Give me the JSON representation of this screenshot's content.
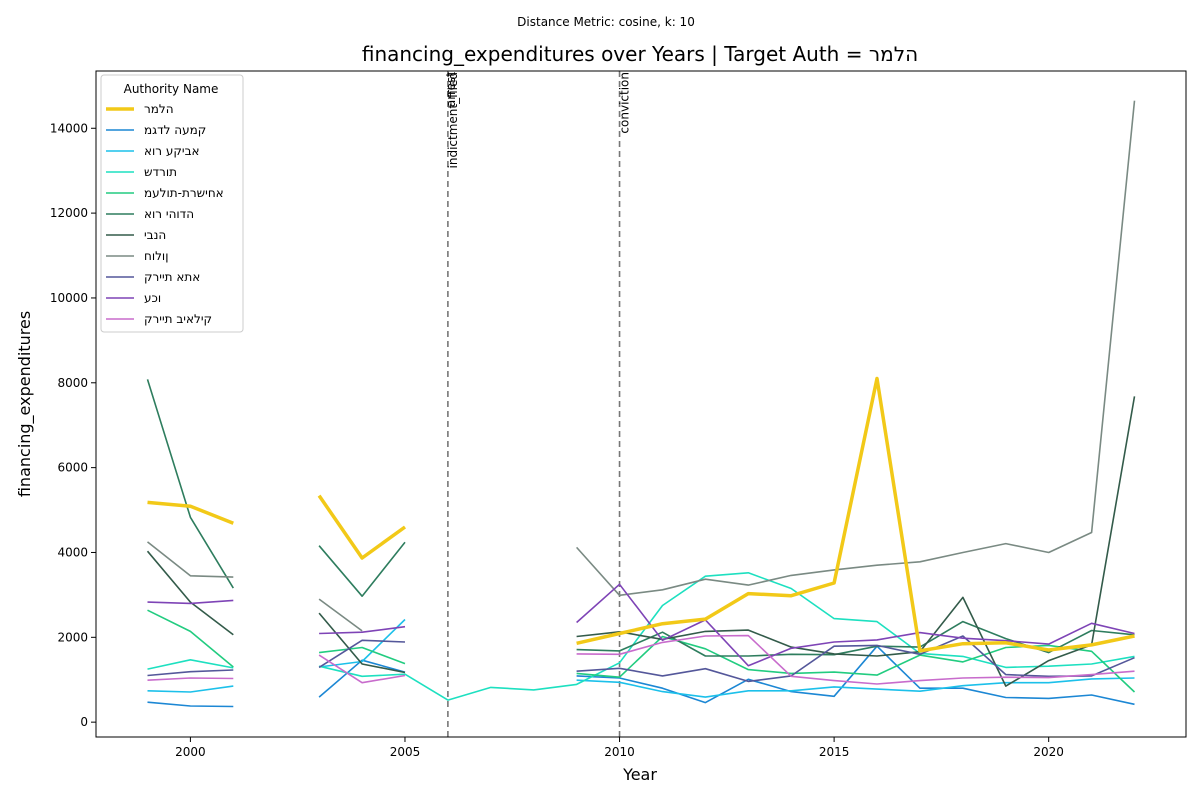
{
  "suptitle": "Distance Metric: cosine, k: 10",
  "chart_data": {
    "type": "line",
    "title": "financing_expenditures over Years | Target Auth = הלמר",
    "xlabel": "Year",
    "ylabel": "financing_expenditures",
    "xlim": [
      1997.8,
      2023.2
    ],
    "ylim": [
      -350,
      15350
    ],
    "xticks": [
      2000,
      2005,
      2010,
      2015,
      2020
    ],
    "yticks": [
      0,
      2000,
      4000,
      6000,
      8000,
      10000,
      12000,
      14000
    ],
    "grid": false,
    "legend": {
      "title": "Authority Name",
      "placement": "upper-left"
    },
    "events": [
      {
        "x": 2006,
        "labels": [
          "indictment_filed",
          "arrest"
        ]
      },
      {
        "x": 2010,
        "labels": [
          "conviction"
        ]
      }
    ],
    "x": [
      1999,
      2000,
      2001,
      2002,
      2003,
      2004,
      2005,
      2006,
      2007,
      2008,
      2009,
      2010,
      2011,
      2012,
      2013,
      2014,
      2015,
      2016,
      2017,
      2018,
      2019,
      2020,
      2021,
      2022
    ],
    "series": [
      {
        "name": "הלמר",
        "color": "#f2c918",
        "width": 3.5,
        "target": true,
        "values": [
          5180,
          5090,
          4690,
          null,
          5340,
          3870,
          4600,
          null,
          null,
          null,
          1860,
          2090,
          2320,
          2430,
          3030,
          2980,
          3280,
          8100,
          1680,
          1850,
          1870,
          1700,
          1820,
          2030
        ]
      },
      {
        "name": "קמעה לדגמ",
        "color": "#1c87d4",
        "width": 1.6,
        "values": [
          470,
          380,
          370,
          null,
          590,
          1460,
          1180,
          null,
          null,
          null,
          1090,
          1040,
          800,
          460,
          1010,
          720,
          610,
          1790,
          800,
          800,
          580,
          560,
          640,
          420
        ]
      },
      {
        "name": "אביקע רוא",
        "color": "#1cc0ea",
        "width": 1.6,
        "values": [
          740,
          710,
          850,
          null,
          1300,
          1430,
          2420,
          null,
          null,
          null,
          990,
          940,
          720,
          590,
          740,
          740,
          830,
          780,
          730,
          860,
          930,
          930,
          1020,
          1040
        ]
      },
      {
        "name": "תורדש",
        "color": "#1de0c0",
        "width": 1.6,
        "values": [
          1250,
          1470,
          1280,
          null,
          1320,
          1080,
          1130,
          520,
          820,
          760,
          890,
          1400,
          2750,
          3440,
          3520,
          3150,
          2440,
          2370,
          1620,
          1550,
          1290,
          1320,
          1370,
          1550
        ]
      },
      {
        "name": "אחישרת-תולעמ",
        "color": "#22cc80",
        "width": 1.6,
        "values": [
          2640,
          2140,
          1300,
          null,
          1640,
          1760,
          1380,
          null,
          null,
          null,
          1150,
          1060,
          2020,
          1730,
          1240,
          1150,
          1180,
          1110,
          1580,
          1420,
          1760,
          1810,
          1670,
          710
        ]
      },
      {
        "name": "הדוהי רוא",
        "color": "#2e7d5e",
        "width": 1.6,
        "values": [
          8080,
          4830,
          3160,
          null,
          4160,
          2970,
          4240,
          null,
          null,
          null,
          1710,
          1680,
          2120,
          1560,
          1560,
          1600,
          1590,
          1790,
          1770,
          2370,
          1970,
          1640,
          2160,
          2060
        ]
      },
      {
        "name": "הנבי",
        "color": "#335b4a",
        "width": 1.6,
        "values": [
          4030,
          2830,
          2060,
          null,
          2570,
          1370,
          1170,
          null,
          null,
          null,
          2020,
          2130,
          1950,
          2140,
          2170,
          1770,
          1610,
          1560,
          1660,
          2940,
          850,
          1450,
          1820,
          7680
        ]
      },
      {
        "name": "ןולוח",
        "color": "#7a8a83",
        "width": 1.6,
        "values": [
          4250,
          3450,
          3420,
          null,
          2900,
          2150,
          null,
          null,
          null,
          null,
          4120,
          2990,
          3120,
          3370,
          3230,
          3460,
          3590,
          3700,
          3780,
          4000,
          4210,
          4000,
          4470,
          14650
        ]
      },
      {
        "name": "אתא תיירק",
        "color": "#54579a",
        "width": 1.6,
        "values": [
          1100,
          1190,
          1230,
          null,
          1290,
          1930,
          1890,
          null,
          null,
          null,
          1200,
          1270,
          1090,
          1260,
          960,
          1090,
          1790,
          1810,
          1600,
          2030,
          1120,
          1080,
          1090,
          1520
        ]
      },
      {
        "name": "וכע",
        "color": "#7e44b6",
        "width": 1.6,
        "values": [
          2830,
          2800,
          2870,
          null,
          2090,
          2120,
          2250,
          null,
          null,
          null,
          2350,
          3250,
          1930,
          2410,
          1330,
          1740,
          1890,
          1940,
          2110,
          1980,
          1920,
          1840,
          2330,
          2090
        ]
      },
      {
        "name": "קילאיב תיירק",
        "color": "#c86ccc",
        "width": 1.6,
        "values": [
          990,
          1040,
          1030,
          null,
          1580,
          930,
          1100,
          null,
          null,
          null,
          1610,
          1600,
          1880,
          2030,
          2040,
          1080,
          980,
          900,
          980,
          1040,
          1060,
          1050,
          1120,
          1200
        ]
      }
    ]
  }
}
